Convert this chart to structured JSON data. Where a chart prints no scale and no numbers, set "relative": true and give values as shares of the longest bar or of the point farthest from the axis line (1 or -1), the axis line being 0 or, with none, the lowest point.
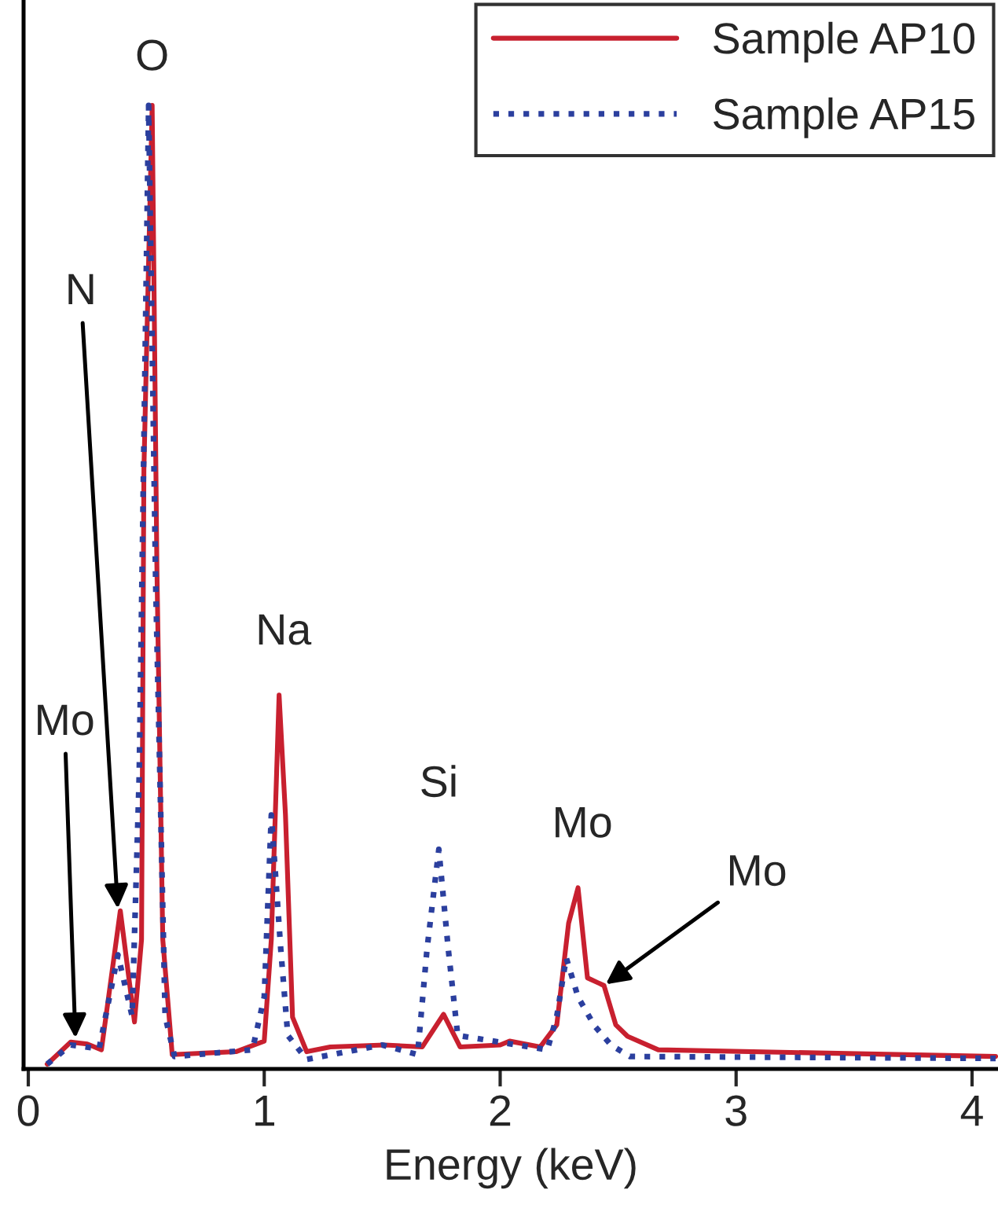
{
  "chart_data": {
    "type": "line",
    "xlabel": "Energy (keV)",
    "relative": true,
    "xlim": [
      -0.02,
      4.11
    ],
    "xticks": [
      0,
      1,
      2,
      3,
      4
    ],
    "legend": "top right",
    "grid": false,
    "marker": "none",
    "series": [
      {
        "name": "Sample AP10",
        "color": "#c8202f",
        "line_style": "solid",
        "x": [
          0.08,
          0.18,
          0.25,
          0.31,
          0.39,
          0.45,
          0.48,
          0.49,
          0.525,
          0.545,
          0.57,
          0.61,
          0.88,
          1.0,
          1.03,
          1.063,
          1.09,
          1.12,
          1.18,
          1.28,
          1.51,
          1.67,
          1.76,
          1.83,
          2.0,
          2.04,
          2.17,
          2.24,
          2.29,
          2.33,
          2.37,
          2.44,
          2.49,
          2.54,
          2.67,
          4.1
        ],
        "values": [
          0,
          0.023,
          0.021,
          0.015,
          0.16,
          0.044,
          0.13,
          0.62,
          1.0,
          0.52,
          0.13,
          0.01,
          0.013,
          0.024,
          0.13,
          0.385,
          0.26,
          0.049,
          0.013,
          0.018,
          0.02,
          0.018,
          0.052,
          0.018,
          0.02,
          0.024,
          0.018,
          0.041,
          0.147,
          0.184,
          0.09,
          0.082,
          0.041,
          0.029,
          0.015,
          0.008
        ]
      },
      {
        "name": "Sample AP15",
        "color": "#2b3f9e",
        "line_style": "dotted",
        "x": [
          0.08,
          0.18,
          0.3,
          0.38,
          0.44,
          0.47,
          0.51,
          0.54,
          0.58,
          0.62,
          0.95,
          1.0,
          1.03,
          1.07,
          1.1,
          1.18,
          1.5,
          1.65,
          1.69,
          1.74,
          1.78,
          1.82,
          2.2,
          2.24,
          2.28,
          2.33,
          2.4,
          2.47,
          2.55,
          4.1
        ],
        "values": [
          0,
          0.02,
          0.016,
          0.114,
          0.05,
          0.3,
          1.0,
          0.5,
          0.05,
          0.008,
          0.015,
          0.07,
          0.26,
          0.12,
          0.03,
          0.005,
          0.02,
          0.01,
          0.12,
          0.224,
          0.12,
          0.03,
          0.015,
          0.05,
          0.111,
          0.07,
          0.04,
          0.02,
          0.008,
          0.006
        ]
      }
    ],
    "annotations": [
      {
        "text": "Mo",
        "x": 0.2,
        "y": 0.025
      },
      {
        "text": "N",
        "x": 0.38,
        "y": 0.16
      },
      {
        "text": "O",
        "x": 0.525,
        "y": 1.0
      },
      {
        "text": "Na",
        "x": 1.063,
        "y": 0.385
      },
      {
        "text": "Si",
        "x": 1.74,
        "y": 0.224
      },
      {
        "text": "Mo",
        "x": 2.33,
        "y": 0.184
      },
      {
        "text": "Mo",
        "x": 2.44,
        "y": 0.082
      }
    ]
  }
}
